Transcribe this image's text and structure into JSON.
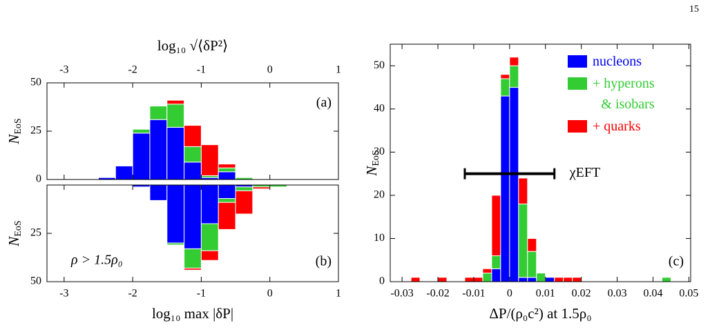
{
  "page_number": "15",
  "chart_data": [
    {
      "type": "histogram",
      "panel_label": "(a)",
      "xlabel": "log₁₀ √⟨δP²⟩",
      "xtick_side": "top",
      "ylabel": "N",
      "ylabel_sub": "EoS",
      "xlim": [
        -3.25,
        1
      ],
      "xticks": [
        -3,
        -2,
        -1,
        0,
        1
      ],
      "ylim": [
        0,
        50
      ],
      "yticks": [
        0,
        25,
        50
      ],
      "bins": [
        -2.5,
        -2.25,
        -2,
        -1.75,
        -1.5,
        -1.25,
        -1,
        -0.75,
        -0.5,
        -0.25,
        0
      ],
      "series": [
        {
          "color": "#0000ff",
          "values": [
            1,
            7,
            24,
            31,
            27,
            9,
            1,
            4,
            0,
            0
          ]
        },
        {
          "color": "#33cc33",
          "values": [
            0,
            0,
            2,
            7,
            12,
            8,
            1,
            2,
            1,
            0
          ]
        },
        {
          "color": "#ff0000",
          "values": [
            0,
            0,
            0,
            0,
            2,
            11,
            16,
            2,
            0,
            0
          ]
        }
      ]
    },
    {
      "type": "histogram",
      "panel_label": "(b)",
      "xlabel": "log₁₀ max |δP|",
      "xtick_side": "bottom",
      "ylabel": "N",
      "ylabel_sub": "EoS",
      "annotation": "ρ > 1.5ρ₀",
      "xlim": [
        -3.25,
        1
      ],
      "xticks": [
        -3,
        -2,
        -1,
        0,
        1
      ],
      "ylim": [
        50,
        0
      ],
      "yticks": [
        25,
        50
      ],
      "bins": [
        -2,
        -1.75,
        -1.5,
        -1.25,
        -1,
        -0.75,
        -0.5,
        -0.25,
        0,
        0.25
      ],
      "series": [
        {
          "color": "#0000ff",
          "values": [
            1,
            8,
            30,
            33,
            20,
            7,
            1,
            0,
            0
          ]
        },
        {
          "color": "#33cc33",
          "values": [
            0,
            0,
            1,
            10,
            14,
            2,
            2,
            1,
            1
          ]
        },
        {
          "color": "#ff0000",
          "values": [
            0,
            0,
            0,
            1,
            5,
            14,
            12,
            1,
            0
          ]
        }
      ]
    },
    {
      "type": "histogram",
      "panel_label": "(c)",
      "xlabel": "ΔP/(ρ₀c²) at 1.5ρ₀",
      "xtick_side": "bottom",
      "ylabel": "N",
      "ylabel_sub": "EoS",
      "legend": "upper right",
      "xlim": [
        -0.0333,
        0.0505
      ],
      "xticks": [
        -0.03,
        -0.02,
        -0.01,
        0,
        0.01,
        0.02,
        0.03,
        0.04,
        0.05
      ],
      "ylim": [
        0,
        55
      ],
      "yticks": [
        0,
        10,
        20,
        30,
        40,
        50
      ],
      "bins": [
        -0.0275,
        -0.025,
        -0.0225,
        -0.02,
        -0.0175,
        -0.015,
        -0.0125,
        -0.01,
        -0.0075,
        -0.005,
        -0.0025,
        0,
        0.0025,
        0.005,
        0.0075,
        0.01,
        0.0125,
        0.015,
        0.0175,
        0.02,
        0.0225,
        0.025,
        0.0275,
        0.03,
        0.0325,
        0.035,
        0.0375,
        0.04,
        0.0425,
        0.045
      ],
      "series": [
        {
          "name": "nucleons",
          "color": "#0000ff",
          "values": [
            0,
            0,
            0,
            0,
            0,
            0,
            0,
            0,
            0,
            3,
            43,
            45,
            1,
            1,
            0,
            1,
            0,
            0,
            0,
            0,
            0,
            0,
            0,
            0,
            0,
            0,
            0,
            0,
            0
          ]
        },
        {
          "name": "+ hyperons\n& isobars",
          "color": "#33cc33",
          "values": [
            0,
            0,
            0,
            0,
            0,
            0,
            0,
            0,
            2,
            3,
            4,
            5,
            17,
            6,
            2,
            0,
            0,
            0,
            0,
            0,
            0,
            0,
            0,
            0,
            0,
            0,
            0,
            0,
            1
          ]
        },
        {
          "name": "+ quarks",
          "color": "#ff0000",
          "values": [
            1,
            0,
            0,
            1,
            0,
            0,
            1,
            1,
            1,
            14,
            1,
            2,
            6,
            3,
            0,
            0,
            1,
            1,
            1,
            0,
            0,
            0,
            0,
            0,
            0,
            0,
            0,
            0,
            0
          ]
        }
      ],
      "error_bar": {
        "x": [
          -0.0125,
          0.0125
        ],
        "y": 25,
        "label": "χEFT"
      }
    }
  ]
}
